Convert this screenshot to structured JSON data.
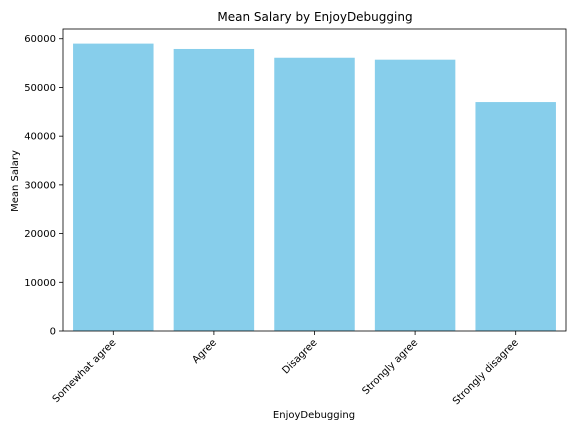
{
  "chart_data": {
    "type": "bar",
    "title": "Mean Salary by EnjoyDebugging",
    "xlabel": "EnjoyDebugging",
    "ylabel": "Mean Salary",
    "categories": [
      "Somewhat agree",
      "Agree",
      "Disagree",
      "Strongly agree",
      "Strongly disagree"
    ],
    "values": [
      59000,
      57900,
      56100,
      55700,
      47000
    ],
    "ylim": [
      0,
      62000
    ],
    "yticks": [
      0,
      10000,
      20000,
      30000,
      40000,
      50000,
      60000
    ],
    "bar_color": "#87CEEB",
    "grid": false,
    "legend": "none"
  }
}
